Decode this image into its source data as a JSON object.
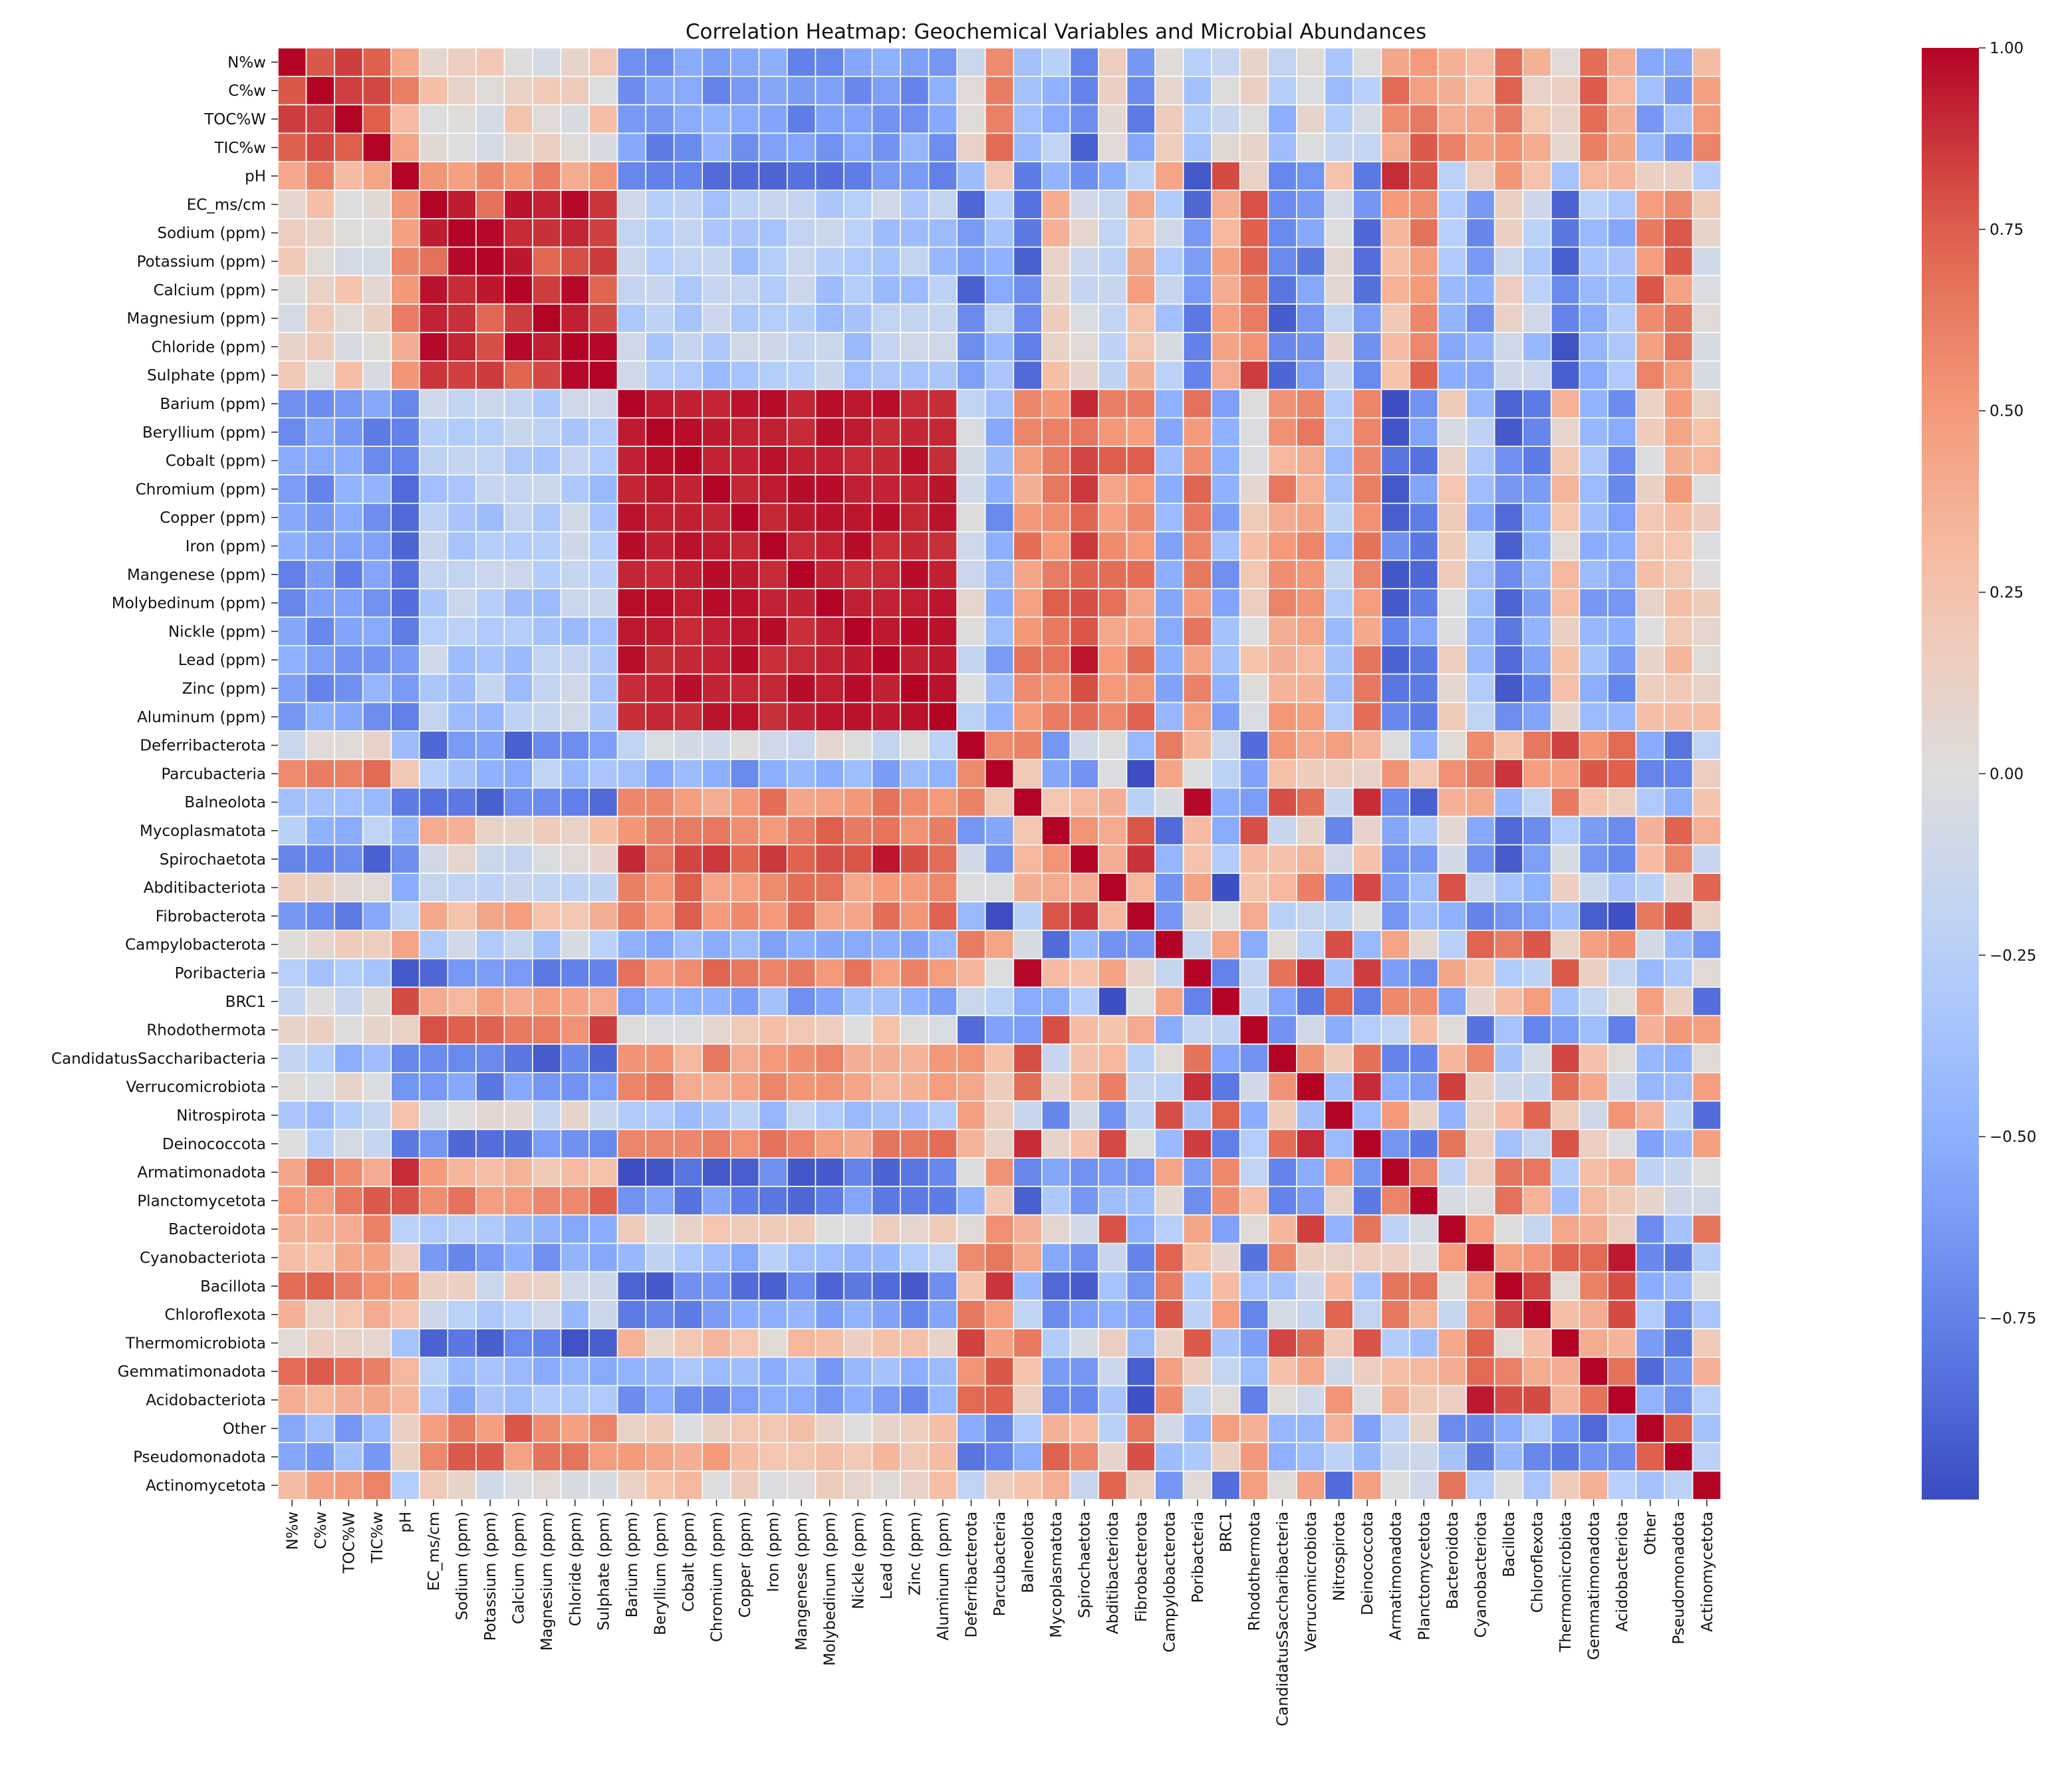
{
  "chart_data": {
    "type": "heatmap",
    "title": "Correlation Heatmap: Geochemical Variables and Microbial Abundances",
    "labels": [
      "N%w",
      "C%w",
      "TOC%W",
      "TIC%w",
      "pH",
      "EC_ms/cm",
      "Sodium (ppm)",
      "Potassium (ppm)",
      "Calcium (ppm)",
      "Magnesium (ppm)",
      "Chloride (ppm)",
      "Sulphate (ppm)",
      "Barium (ppm)",
      "Beryllium (ppm)",
      "Cobalt (ppm)",
      "Chromium (ppm)",
      "Copper (ppm)",
      "Iron (ppm)",
      "Mangenese (ppm)",
      "Molybedinum (ppm)",
      "Nickle (ppm)",
      "Lead (ppm)",
      "Zinc (ppm)",
      "Aluminum (ppm)",
      "Deferribacterota",
      "Parcubacteria",
      "Balneolota",
      "Mycoplasmatota",
      "Spirochaetota",
      "Abditibacteriota",
      "Fibrobacterota",
      "Campylobacterota",
      "Poribacteria",
      "BRC1",
      "Rhodothermota",
      "CandidatusSaccharibacteria",
      "Verrucomicrobiota",
      "Nitrospirota",
      "Deinococcota",
      "Armatimonadota",
      "Planctomycetota",
      "Bacteroidota",
      "Cyanobacteriota",
      "Bacillota",
      "Chloroflexota",
      "Thermomicrobiota",
      "Gemmatimonadota",
      "Acidobacteriota",
      "Other",
      "Pseudomonadota",
      "Actinomycetota"
    ],
    "value_range": [
      -1,
      1
    ],
    "colormap": "coolwarm",
    "colorbar": {
      "ticks": [
        1,
        0.75,
        0.5,
        0.25,
        0,
        -0.25,
        -0.5,
        -0.75
      ],
      "tick_labels": [
        "1.00",
        "0.75",
        "0.50",
        "0.25",
        "0.00",
        "−0.25",
        "−0.50",
        "−0.75"
      ]
    },
    "xlabel": "",
    "ylabel": "",
    "variable_groups": {
      "nutrients": [
        "N%w",
        "C%w",
        "TOC%W",
        "TIC%w"
      ],
      "salts": [
        "EC_ms/cm",
        "Sodium (ppm)",
        "Potassium (ppm)",
        "Calcium (ppm)",
        "Magnesium (ppm)",
        "Chloride (ppm)",
        "Sulphate (ppm)"
      ],
      "metals": [
        "Barium (ppm)",
        "Beryllium (ppm)",
        "Cobalt (ppm)",
        "Chromium (ppm)",
        "Copper (ppm)",
        "Iron (ppm)",
        "Mangenese (ppm)",
        "Molybedinum (ppm)",
        "Nickle (ppm)",
        "Lead (ppm)",
        "Zinc (ppm)",
        "Aluminum (ppm)"
      ]
    }
  }
}
